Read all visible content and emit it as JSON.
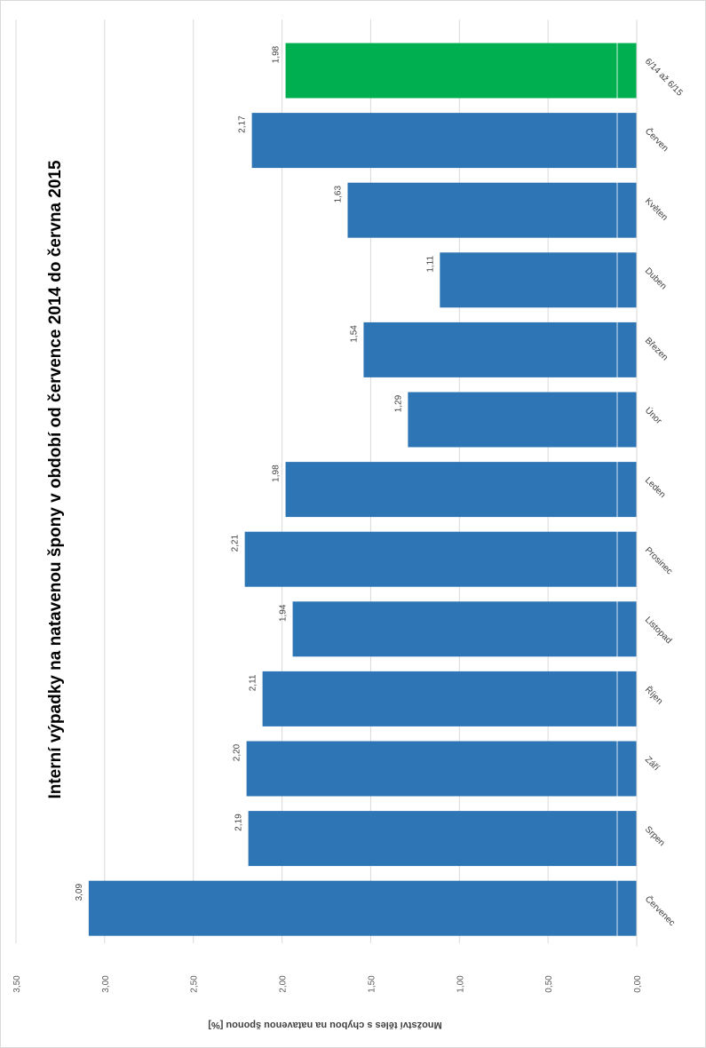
{
  "chart_data": {
    "type": "bar",
    "orientation": "rotated-90-clockwise",
    "title": "Interní výpadky na natavenou špony v období od července 2014 do června 2015",
    "ylabel": "Množství těles s chybou na natavenou šponou [%]",
    "xlabel": "",
    "categories": [
      "Červenec",
      "Srpen",
      "Září",
      "Říjen",
      "Listopad",
      "Prosinec",
      "Leden",
      "Únor",
      "Březen",
      "Duben",
      "Květen",
      "Červen",
      "6/14 až 6/15"
    ],
    "values": [
      3.09,
      2.19,
      2.2,
      2.11,
      1.94,
      2.21,
      1.98,
      1.29,
      1.54,
      1.11,
      1.63,
      2.17,
      1.98
    ],
    "data_labels": [
      "3,09",
      "2,19",
      "2,20",
      "2,11",
      "1,94",
      "2,21",
      "1,98",
      "1,29",
      "1,54",
      "1,11",
      "1,63",
      "2,17",
      "1,98"
    ],
    "bar_colors": [
      "#2e75b6",
      "#2e75b6",
      "#2e75b6",
      "#2e75b6",
      "#2e75b6",
      "#2e75b6",
      "#2e75b6",
      "#2e75b6",
      "#2e75b6",
      "#2e75b6",
      "#2e75b6",
      "#2e75b6",
      "#00b050"
    ],
    "yticks": [
      "0,00",
      "0,50",
      "1,00",
      "1,50",
      "2,00",
      "2,50",
      "3,00",
      "3,50"
    ],
    "ylim": [
      0,
      3.5
    ],
    "grid": true,
    "legend": "none"
  }
}
